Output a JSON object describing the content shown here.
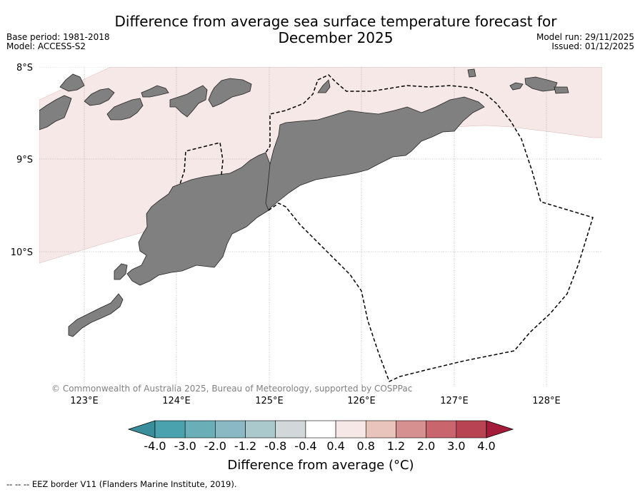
{
  "header": {
    "title_line1": "Difference from average sea surface temperature forecast for",
    "title_line2": "December 2025",
    "base_period": "Base period: 1981-2018",
    "model": "Model: ACCESS-S2",
    "model_run": "Model run: 29/11/2025",
    "issued": "Issued: 01/12/2025"
  },
  "map": {
    "lat_labels": [
      "8°S",
      "9°S",
      "10°S"
    ],
    "lon_labels": [
      "123°E",
      "124°E",
      "125°E",
      "126°E",
      "127°E",
      "128°E"
    ],
    "copyright": "© Commonwealth of Australia 2025, Bureau of Meteorology, supported by COSPPac",
    "anomaly_band_value": "0.4 to 0.8",
    "colors": {
      "land": "#808080",
      "warm_band": "#f6e8e6",
      "grid": "#999999",
      "eez": "#000000"
    }
  },
  "colorbar": {
    "tick_labels": [
      "-4.0",
      "-3.0",
      "-2.0",
      "-1.2",
      "-0.8",
      "-0.4",
      "0.4",
      "0.8",
      "1.2",
      "2.0",
      "3.0",
      "4.0"
    ],
    "colors": [
      "#3a8d9a",
      "#4aa2ae",
      "#6aaeb8",
      "#8bb9c3",
      "#aac9cc",
      "#d2d8da",
      "#ffffff",
      "#f6e8e6",
      "#e8c4bd",
      "#d6908f",
      "#c9666d",
      "#b84453",
      "#a51c3b"
    ],
    "label": "Difference from average (°C)"
  },
  "footer": {
    "legend_text": "--  --  -- EEZ border V11 (Flanders Marine Institute, 2019)."
  }
}
